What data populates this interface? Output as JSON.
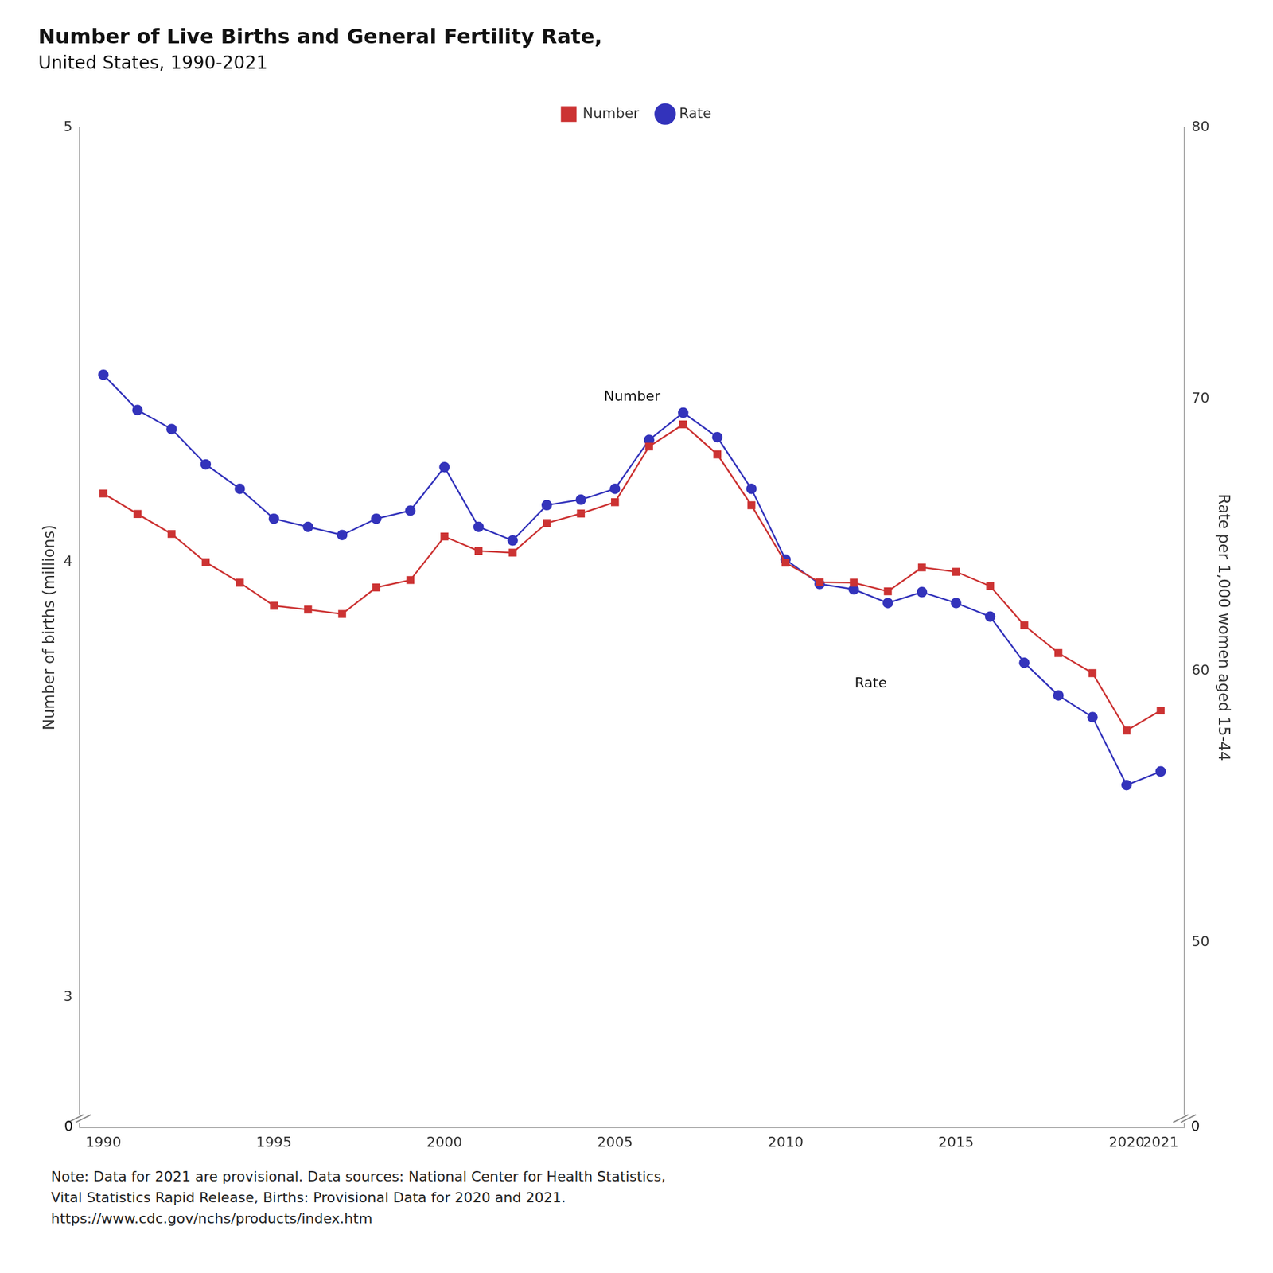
{
  "chart_data": {
    "type": "line",
    "title": "Number of Live Births and General Fertility Rate,",
    "subtitle": "United States, 1990-2021",
    "x": [
      1990,
      1991,
      1992,
      1993,
      1994,
      1995,
      1996,
      1997,
      1998,
      1999,
      2000,
      2001,
      2002,
      2003,
      2004,
      2005,
      2006,
      2007,
      2008,
      2009,
      2010,
      2011,
      2012,
      2013,
      2014,
      2015,
      2016,
      2017,
      2018,
      2019,
      2020,
      2021
    ],
    "series": [
      {
        "name": "Number",
        "color": "#cc3333",
        "marker": "square",
        "values": [
          4.158,
          4.111,
          4.065,
          4.0,
          3.953,
          3.9,
          3.891,
          3.881,
          3.942,
          3.959,
          4.059,
          4.026,
          4.022,
          4.09,
          4.112,
          4.138,
          4.266,
          4.317,
          4.248,
          4.131,
          3.999,
          3.954,
          3.953,
          3.933,
          3.988,
          3.978,
          3.945,
          3.855,
          3.791,
          3.745,
          3.613,
          3.659
        ]
      },
      {
        "name": "Rate",
        "color": "#3333bb",
        "marker": "circle",
        "axis": "y2",
        "values": [
          70.9,
          69.6,
          68.9,
          67.6,
          66.7,
          65.6,
          65.3,
          65.0,
          65.6,
          65.9,
          67.5,
          65.3,
          64.8,
          66.1,
          66.3,
          66.7,
          68.5,
          69.5,
          68.6,
          66.7,
          64.1,
          63.2,
          63.0,
          62.5,
          62.9,
          62.5,
          62.0,
          60.3,
          59.1,
          58.3,
          55.8,
          56.3
        ]
      }
    ],
    "xlim": [
      1989.3,
      2021.7
    ],
    "xticks": [
      1990,
      1995,
      2000,
      2005,
      2010,
      2015,
      2020,
      2021
    ],
    "ylabel": "Number of births (millions)",
    "ylim": [
      2.7,
      5.0
    ],
    "yticks": [
      3,
      4,
      5
    ],
    "y2label": "Rate per 1,000 women aged 15-44",
    "y2lim": [
      43.2,
      80.0
    ],
    "y2ticks": [
      50,
      60,
      70,
      80
    ],
    "annotations": [
      {
        "text": "Number",
        "x": 2005.5,
        "y": 4.38
      },
      {
        "text": "Rate",
        "x": 2012.5,
        "y": 3.72
      },
      {
        "text": "0",
        "x": 1989.3,
        "y": 2.7
      },
      {
        "text": "0",
        "x": 2021.7,
        "y": 43.2,
        "axis": "y2"
      }
    ],
    "note": [
      "Note: Data for 2021 are provisional. Data sources: National Center for Health Statistics,",
      "Vital Statistics Rapid Release, Births: Provisional Data for 2020 and 2021.",
      "https://www.cdc.gov/nchs/products/index.htm"
    ],
    "grid": false,
    "legend": "top"
  }
}
